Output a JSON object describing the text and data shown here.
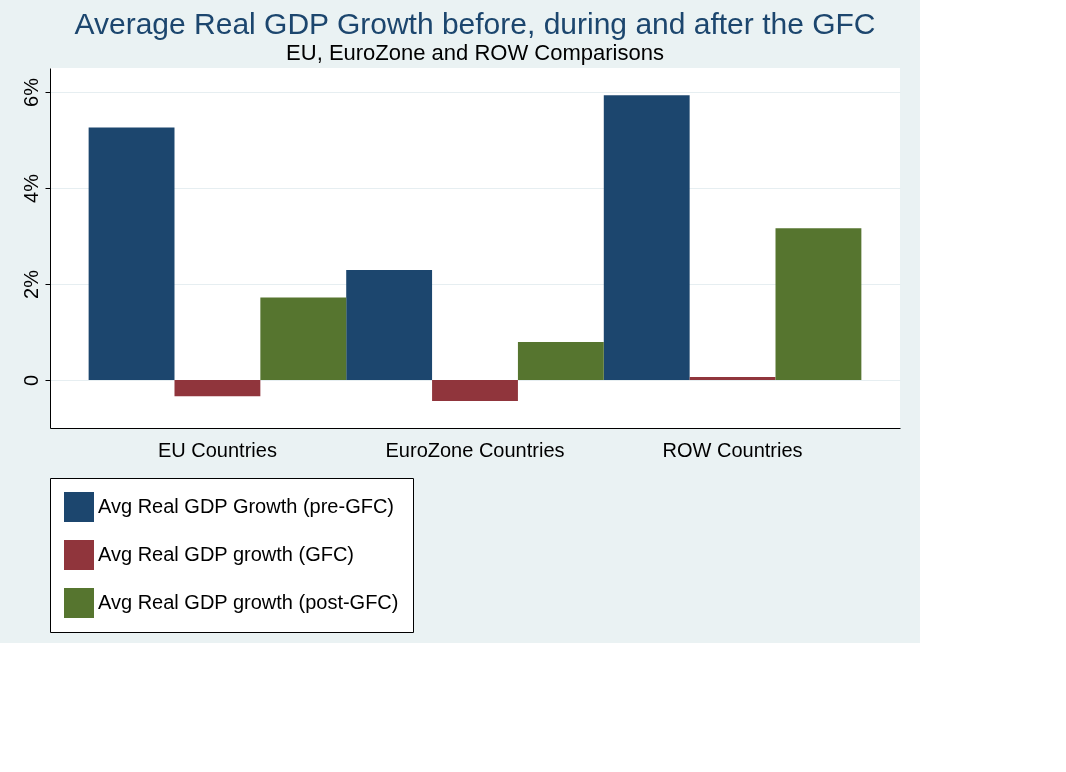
{
  "chart_data": {
    "type": "bar",
    "title": "Average Real GDP Growth before, during and after the GFC",
    "subtitle": "EU, EuroZone and ROW Comparisons",
    "categories": [
      "EU Countries",
      "EuroZone Countries",
      "ROW Countries"
    ],
    "series": [
      {
        "name": "Avg Real GDP Growth (pre-GFC)",
        "color": "#1c466e",
        "values": [
          5.26,
          2.29,
          5.93
        ]
      },
      {
        "name": "Avg Real GDP growth (GFC)",
        "color": "#90353c",
        "values": [
          -0.34,
          -0.44,
          0.06
        ]
      },
      {
        "name": "Avg Real GDP growth (post-GFC)",
        "color": "#56752f",
        "values": [
          1.72,
          0.79,
          3.16
        ]
      }
    ],
    "ylim": [
      -1,
      6.5
    ],
    "yticks": [
      0,
      {
        "value": 2,
        "label": "2%"
      },
      {
        "value": 4,
        "label": "4%"
      },
      {
        "value": 6,
        "label": "6%"
      }
    ],
    "grid": "y",
    "legend": "bottom"
  }
}
